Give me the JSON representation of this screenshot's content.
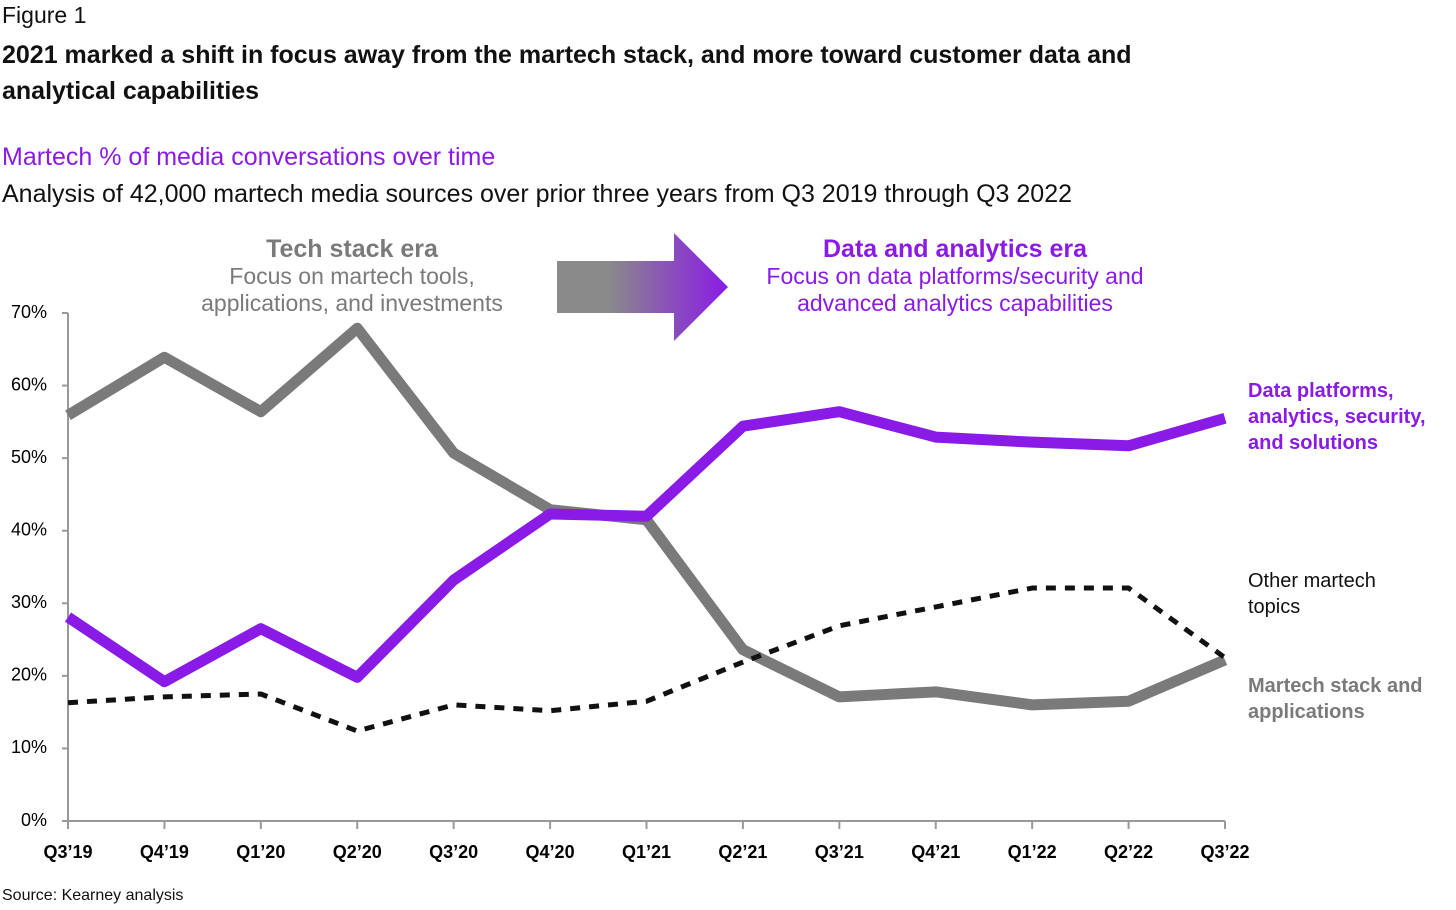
{
  "figure_label": "Figure 1",
  "chart_data": {
    "type": "line",
    "title": "2021 marked a shift in focus away from the martech stack, and more toward customer data and analytical capabilities",
    "subtitle": "Martech % of media conversations over time",
    "description": "Analysis of 42,000 martech media sources over prior three years from Q3 2019 through Q3 2022",
    "annotations": [
      {
        "title": "Tech stack era",
        "text": "Focus on martech tools, applications, and investments",
        "color": "#7a7a7a"
      },
      {
        "title": "Data and analytics era",
        "text": "Focus on data platforms/security and advanced analytics capabilities",
        "color": "#8a1be6"
      }
    ],
    "categories": [
      "Q3’19",
      "Q4’19",
      "Q1’20",
      "Q2’20",
      "Q3’20",
      "Q4’20",
      "Q1’21",
      "Q2’21",
      "Q3’21",
      "Q4’21",
      "Q1’22",
      "Q2’22",
      "Q3’22"
    ],
    "series": [
      {
        "name": "Data platforms, analytics, security, and solutions",
        "color": "#8a1be6",
        "line_style": "solid",
        "values": [
          28.1,
          19.2,
          26.5,
          19.8,
          33.2,
          42.3,
          42.0,
          54.4,
          56.4,
          52.9,
          52.2,
          51.7,
          55.5
        ]
      },
      {
        "name": "Other martech topics",
        "color": "#111111",
        "line_style": "dashed",
        "values": [
          16.3,
          17.1,
          17.5,
          12.4,
          16.0,
          15.2,
          16.5,
          21.9,
          26.9,
          29.5,
          32.1,
          32.1,
          22.5
        ]
      },
      {
        "name": "Martech stack and applications",
        "color": "#7a7a7a",
        "line_style": "solid",
        "values": [
          55.9,
          63.9,
          56.4,
          67.9,
          50.7,
          42.9,
          41.5,
          23.6,
          17.1,
          17.8,
          16.0,
          16.5,
          22.2
        ]
      }
    ],
    "ylim": [
      0,
      70
    ],
    "yticks": [
      {
        "value": 0,
        "label": "0%"
      },
      {
        "value": 10,
        "label": "10%"
      },
      {
        "value": 20,
        "label": "20%"
      },
      {
        "value": 30,
        "label": "30%"
      },
      {
        "value": 40,
        "label": "40%"
      },
      {
        "value": 50,
        "label": "50%"
      },
      {
        "value": 60,
        "label": "60%"
      },
      {
        "value": 70,
        "label": "70%"
      }
    ],
    "source": "Source: Kearney analysis"
  }
}
